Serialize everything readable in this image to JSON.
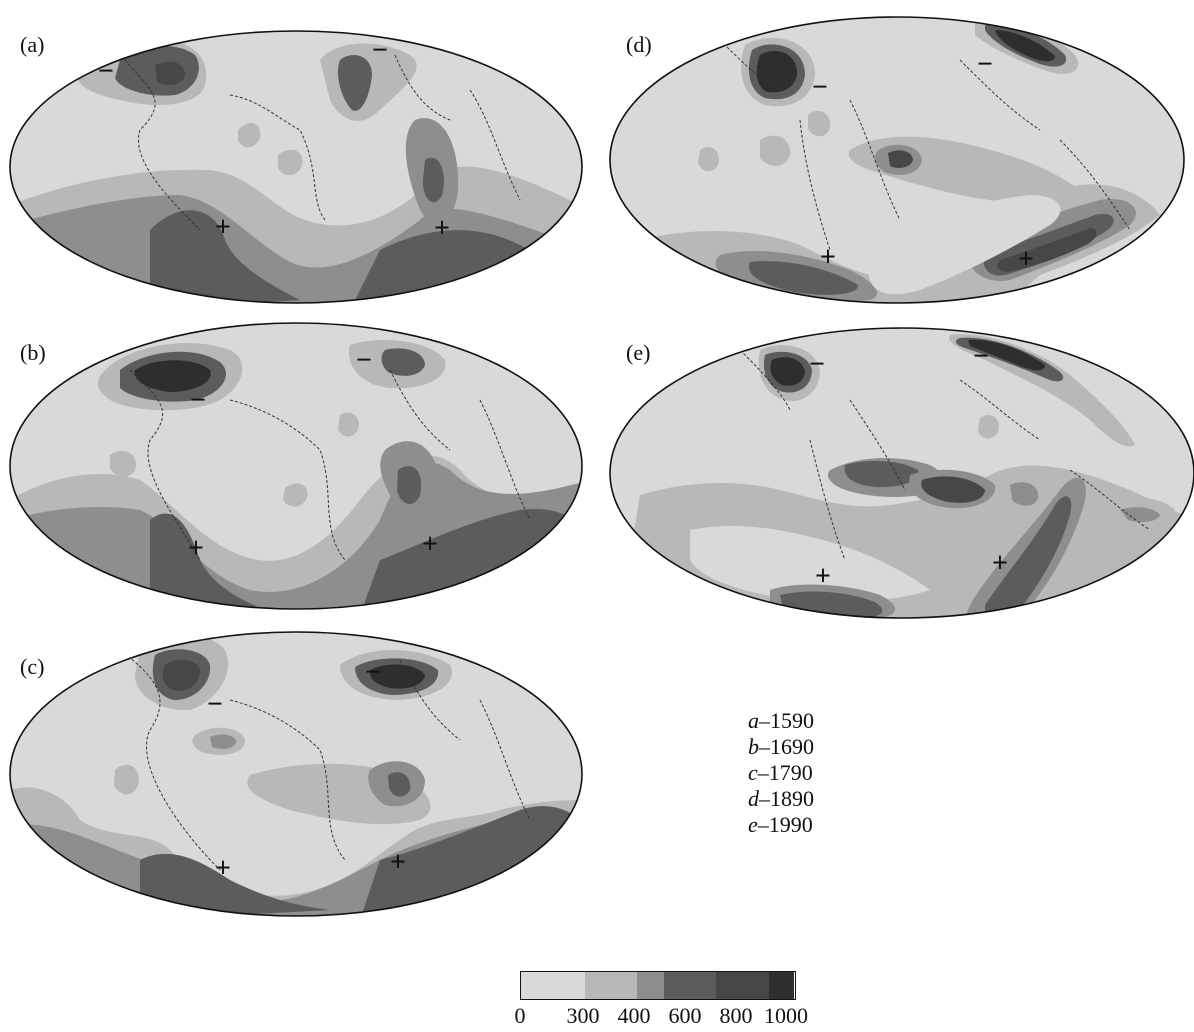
{
  "panels": [
    {
      "id": "a",
      "label": "(a)"
    },
    {
      "id": "b",
      "label": "(b)"
    },
    {
      "id": "c",
      "label": "(c)"
    },
    {
      "id": "d",
      "label": "(d)"
    },
    {
      "id": "e",
      "label": "(e)"
    }
  ],
  "sign_markers": {
    "minus": "−",
    "plus": "+"
  },
  "epoch_legend": [
    {
      "letter": "a",
      "year": "–1590"
    },
    {
      "letter": "b",
      "year": "–1690"
    },
    {
      "letter": "c",
      "year": "–1790"
    },
    {
      "letter": "d",
      "year": "–1890"
    },
    {
      "letter": "e",
      "year": "–1990"
    }
  ],
  "color_scale": {
    "ticks": [
      "0",
      "300",
      "400",
      "600",
      "800",
      "1000"
    ],
    "bins": [
      {
        "from": 0,
        "to": 300,
        "color": "#d9d9d9"
      },
      {
        "from": 300,
        "to": 400,
        "color": "#b8b8b8"
      },
      {
        "from": 400,
        "to": 600,
        "color": "#8e8e8e"
      },
      {
        "from": 600,
        "to": 800,
        "color": "#5c5c5c"
      },
      {
        "from": 800,
        "to": 1000,
        "color": "#474747"
      },
      {
        "from": 1000,
        "to": 1100,
        "color": "#2e2e2e"
      }
    ]
  },
  "colors": {
    "level0": "#d9d9d9",
    "level1": "#b8b8b8",
    "level2": "#8e8e8e",
    "level3": "#5c5c5c",
    "level4": "#474747",
    "level5": "#2e2e2e",
    "coast": "#333333"
  }
}
